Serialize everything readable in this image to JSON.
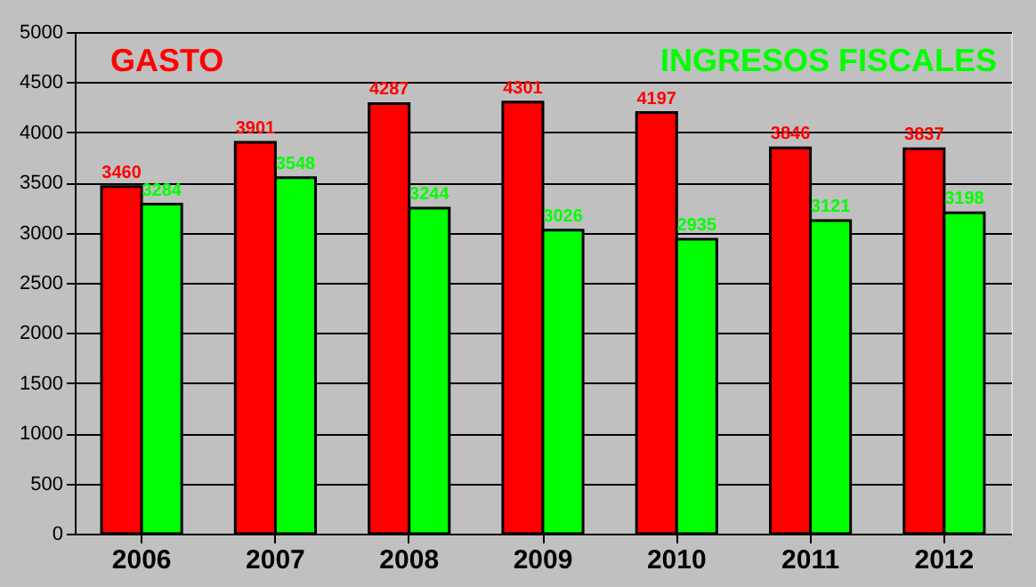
{
  "chart_data": {
    "type": "bar",
    "categories": [
      "2006",
      "2007",
      "2008",
      "2009",
      "2010",
      "2011",
      "2012"
    ],
    "series": [
      {
        "name": "GASTO",
        "color": "#ff0000",
        "values": [
          3460,
          3901,
          4287,
          4301,
          4197,
          3846,
          3837
        ]
      },
      {
        "name": "INGRESOS FISCALES",
        "color": "#00ff00",
        "values": [
          3284,
          3548,
          3244,
          3026,
          2935,
          3121,
          3198
        ]
      }
    ],
    "ylim": [
      0,
      5000
    ],
    "yticks": [
      0,
      500,
      1000,
      1500,
      2000,
      2500,
      3000,
      3500,
      4000,
      4500,
      5000
    ],
    "grid": "y",
    "data_labels": true,
    "legend": false
  }
}
